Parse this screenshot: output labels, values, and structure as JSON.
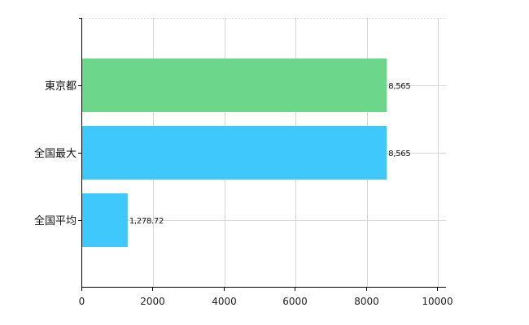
{
  "chart_data": {
    "type": "bar",
    "orientation": "horizontal",
    "categories": [
      "東京都",
      "全国最大",
      "全国平均"
    ],
    "values": [
      8565,
      8565,
      1278.72
    ],
    "data_labels": [
      "8,565",
      "8,565",
      "1,278.72"
    ],
    "colors": [
      "#6cd68b",
      "#3fc8fc",
      "#3fc8fc"
    ],
    "xlim": [
      0,
      10000
    ],
    "x_ticks": [
      0,
      2000,
      4000,
      6000,
      8000,
      10000
    ],
    "x_tick_labels": [
      "0",
      "2000",
      "4000",
      "6000",
      "8000",
      "10000"
    ],
    "grid": true,
    "legend": "none",
    "title": "",
    "xlabel": "",
    "ylabel": ""
  }
}
